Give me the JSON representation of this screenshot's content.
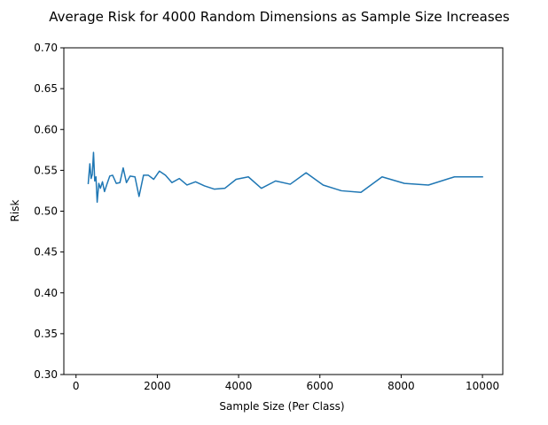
{
  "chart_data": {
    "type": "line",
    "title": "Average Risk for 4000 Random Dimensions as Sample Size Increases",
    "xlabel": "Sample Size (Per Class)",
    "ylabel": "Risk",
    "xlim": [
      -300,
      10500
    ],
    "ylim": [
      0.3,
      0.7
    ],
    "xticks": [
      0,
      2000,
      4000,
      6000,
      8000,
      10000
    ],
    "yticks": [
      0.3,
      0.35,
      0.4,
      0.45,
      0.5,
      0.55,
      0.6,
      0.65,
      0.7
    ],
    "xtick_labels": [
      "0",
      "2000",
      "4000",
      "6000",
      "8000",
      "10000"
    ],
    "ytick_labels": [
      "0.30",
      "0.35",
      "0.40",
      "0.45",
      "0.50",
      "0.55",
      "0.60",
      "0.65",
      "0.70"
    ],
    "grid": false,
    "legend": "none",
    "series": [
      {
        "color": "#1f77b4",
        "x": [
          300,
          340,
          370,
          400,
          430,
          460,
          490,
          520,
          560,
          600,
          650,
          700,
          760,
          830,
          900,
          990,
          1080,
          1160,
          1240,
          1330,
          1450,
          1550,
          1660,
          1780,
          1910,
          2050,
          2200,
          2360,
          2540,
          2730,
          2940,
          3160,
          3400,
          3660,
          3940,
          4240,
          4560,
          4910,
          5270,
          5660,
          6080,
          6530,
          7010,
          7530,
          8080,
          8670,
          9310,
          10000
        ],
        "y": [
          0.534,
          0.558,
          0.54,
          0.545,
          0.572,
          0.537,
          0.542,
          0.511,
          0.534,
          0.528,
          0.536,
          0.524,
          0.533,
          0.543,
          0.544,
          0.534,
          0.535,
          0.553,
          0.535,
          0.543,
          0.542,
          0.518,
          0.544,
          0.544,
          0.539,
          0.549,
          0.544,
          0.535,
          0.54,
          0.532,
          0.536,
          0.531,
          0.527,
          0.528,
          0.539,
          0.542,
          0.528,
          0.537,
          0.533,
          0.547,
          0.532,
          0.525,
          0.523,
          0.542,
          0.534,
          0.532,
          0.542,
          0.542
        ]
      }
    ]
  }
}
